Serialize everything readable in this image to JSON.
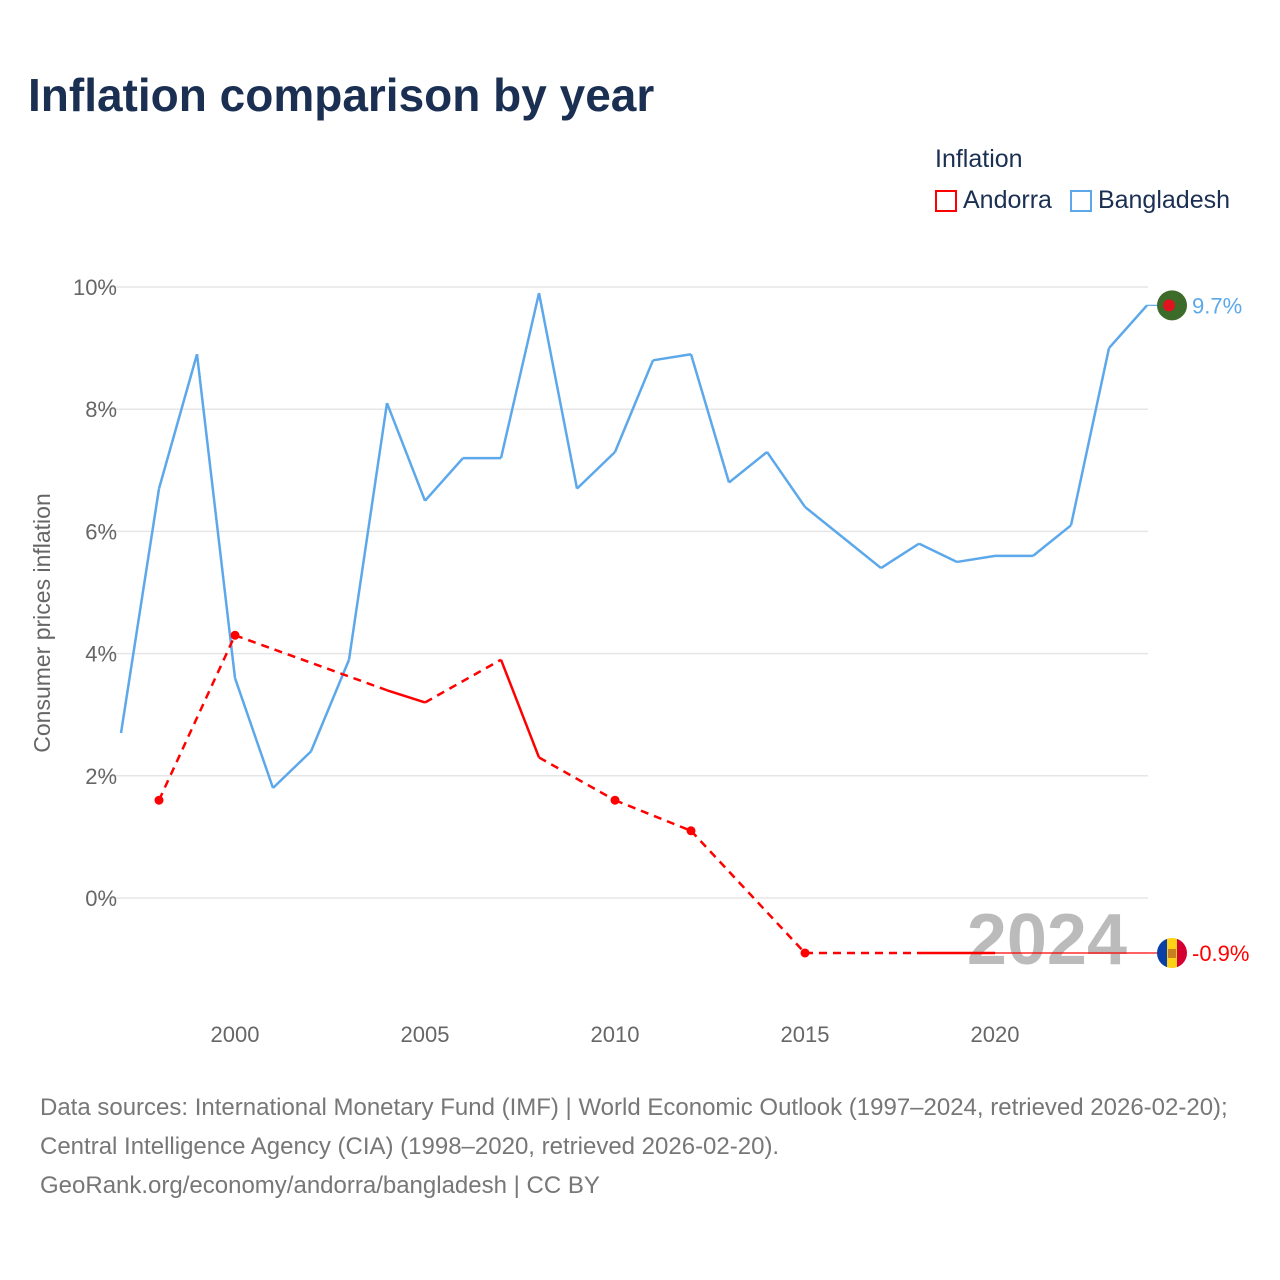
{
  "title": "Inflation comparison by year",
  "legend": {
    "title": "Inflation",
    "items": [
      {
        "name": "Andorra",
        "color": "#ff0000"
      },
      {
        "name": "Bangladesh",
        "color": "#5ca8ea"
      }
    ]
  },
  "source": {
    "line1": "Data sources: International Monetary Fund (IMF) | World Economic Outlook (1997–2024, retrieved 2026-02-20); Central Intelligence Agency (CIA) (1998–2020, retrieved 2026-02-20).",
    "line2": "GeoRank.org/economy/andorra/bangladesh | CC BY"
  },
  "chart_data": {
    "type": "line",
    "title": "Inflation comparison by year",
    "xlabel": "",
    "ylabel": "Consumer prices inflation",
    "xlim": [
      1997,
      2024
    ],
    "ylim": [
      -1.5,
      10
    ],
    "yticks": [
      {
        "v": 0,
        "label": "0%"
      },
      {
        "v": 2,
        "label": "2%"
      },
      {
        "v": 4,
        "label": "4%"
      },
      {
        "v": 6,
        "label": "6%"
      },
      {
        "v": 8,
        "label": "8%"
      },
      {
        "v": 10,
        "label": "10%"
      }
    ],
    "xticks": [
      2000,
      2005,
      2010,
      2015,
      2020
    ],
    "year_watermark": "2024",
    "series": [
      {
        "name": "Bangladesh",
        "color": "#5ca8ea",
        "end_label": "9.7%",
        "flag_colors": [
          "#3d6b2a",
          "#e0141e"
        ],
        "x": [
          1997,
          1998,
          1999,
          2000,
          2001,
          2002,
          2003,
          2004,
          2005,
          2006,
          2007,
          2008,
          2009,
          2010,
          2011,
          2012,
          2013,
          2014,
          2015,
          2016,
          2017,
          2018,
          2019,
          2020,
          2021,
          2022,
          2023,
          2024
        ],
        "y": [
          2.7,
          6.7,
          8.9,
          3.6,
          1.8,
          2.4,
          3.9,
          8.1,
          6.5,
          7.2,
          7.2,
          9.9,
          6.7,
          7.3,
          8.8,
          8.9,
          6.8,
          7.3,
          6.4,
          5.9,
          5.4,
          5.8,
          5.5,
          5.6,
          5.6,
          6.1,
          9.0,
          9.7
        ]
      },
      {
        "name": "Andorra",
        "color": "#ff0000",
        "end_label": "-0.9%",
        "flag_colors": [
          "#0a3fa8",
          "#fcd116",
          "#d50032"
        ],
        "x": [
          1998,
          2000,
          2004,
          2005,
          2007,
          2008,
          2010,
          2012,
          2015,
          2018,
          2019,
          2020,
          2024
        ],
        "y": [
          1.6,
          4.3,
          3.4,
          3.2,
          3.9,
          2.3,
          1.6,
          1.1,
          -0.9,
          -0.9,
          -0.9,
          -0.9,
          -0.9
        ]
      }
    ]
  }
}
